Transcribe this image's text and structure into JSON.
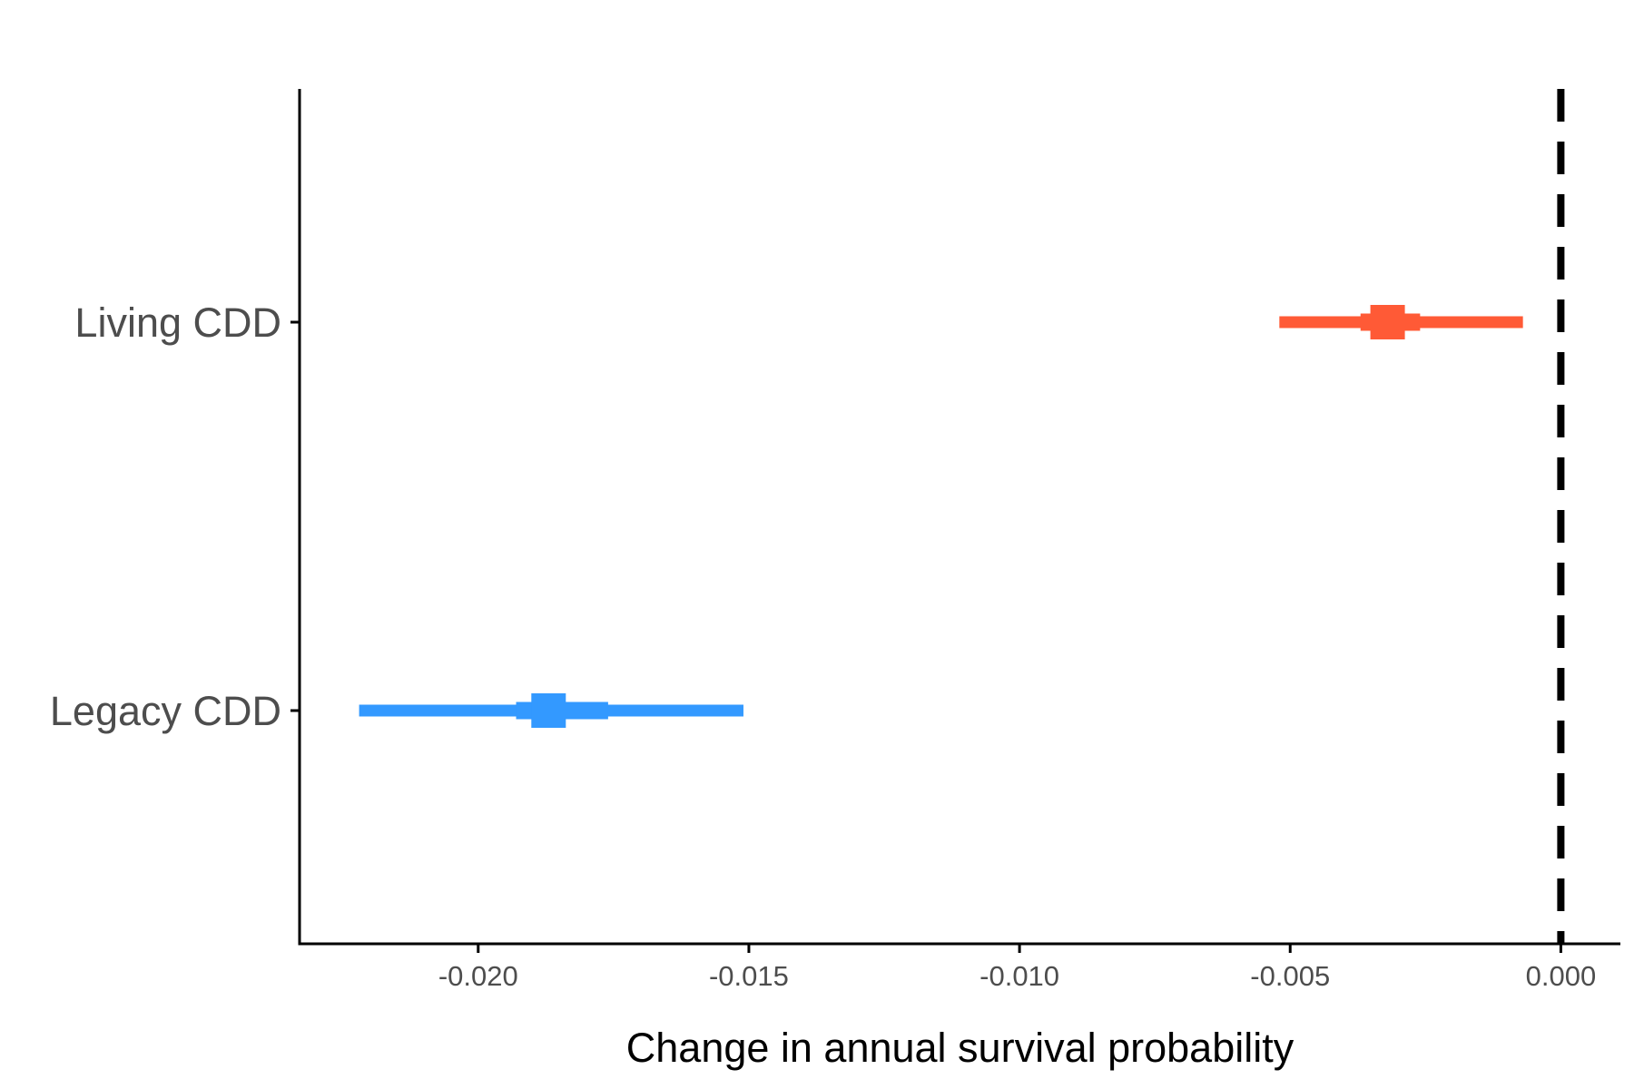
{
  "chart_data": {
    "type": "interval",
    "title": "",
    "xlabel": "Change in annual survival probability",
    "ylabel": "",
    "xlim": [
      -0.0233,
      0.0011
    ],
    "x_ticks": [
      "-0.020",
      "-0.015",
      "-0.010",
      "-0.005",
      "0.000"
    ],
    "x_tick_values": [
      -0.02,
      -0.015,
      -0.01,
      -0.005,
      0.0
    ],
    "categories": [
      "Living CDD",
      "Legacy CDD"
    ],
    "reference_line": {
      "x": 0.0,
      "style": "dashed",
      "color": "#000000"
    },
    "grid": false,
    "legend": "none",
    "series": [
      {
        "category": "Living CDD",
        "estimate": -0.0032,
        "inner_low": -0.0037,
        "inner_high": -0.0026,
        "outer_low": -0.0052,
        "outer_high": -0.0007,
        "color": "#ff5a36"
      },
      {
        "category": "Legacy CDD",
        "estimate": -0.0187,
        "inner_low": -0.0193,
        "inner_high": -0.0176,
        "outer_low": -0.0222,
        "outer_high": -0.0151,
        "color": "#3399ff"
      }
    ]
  }
}
